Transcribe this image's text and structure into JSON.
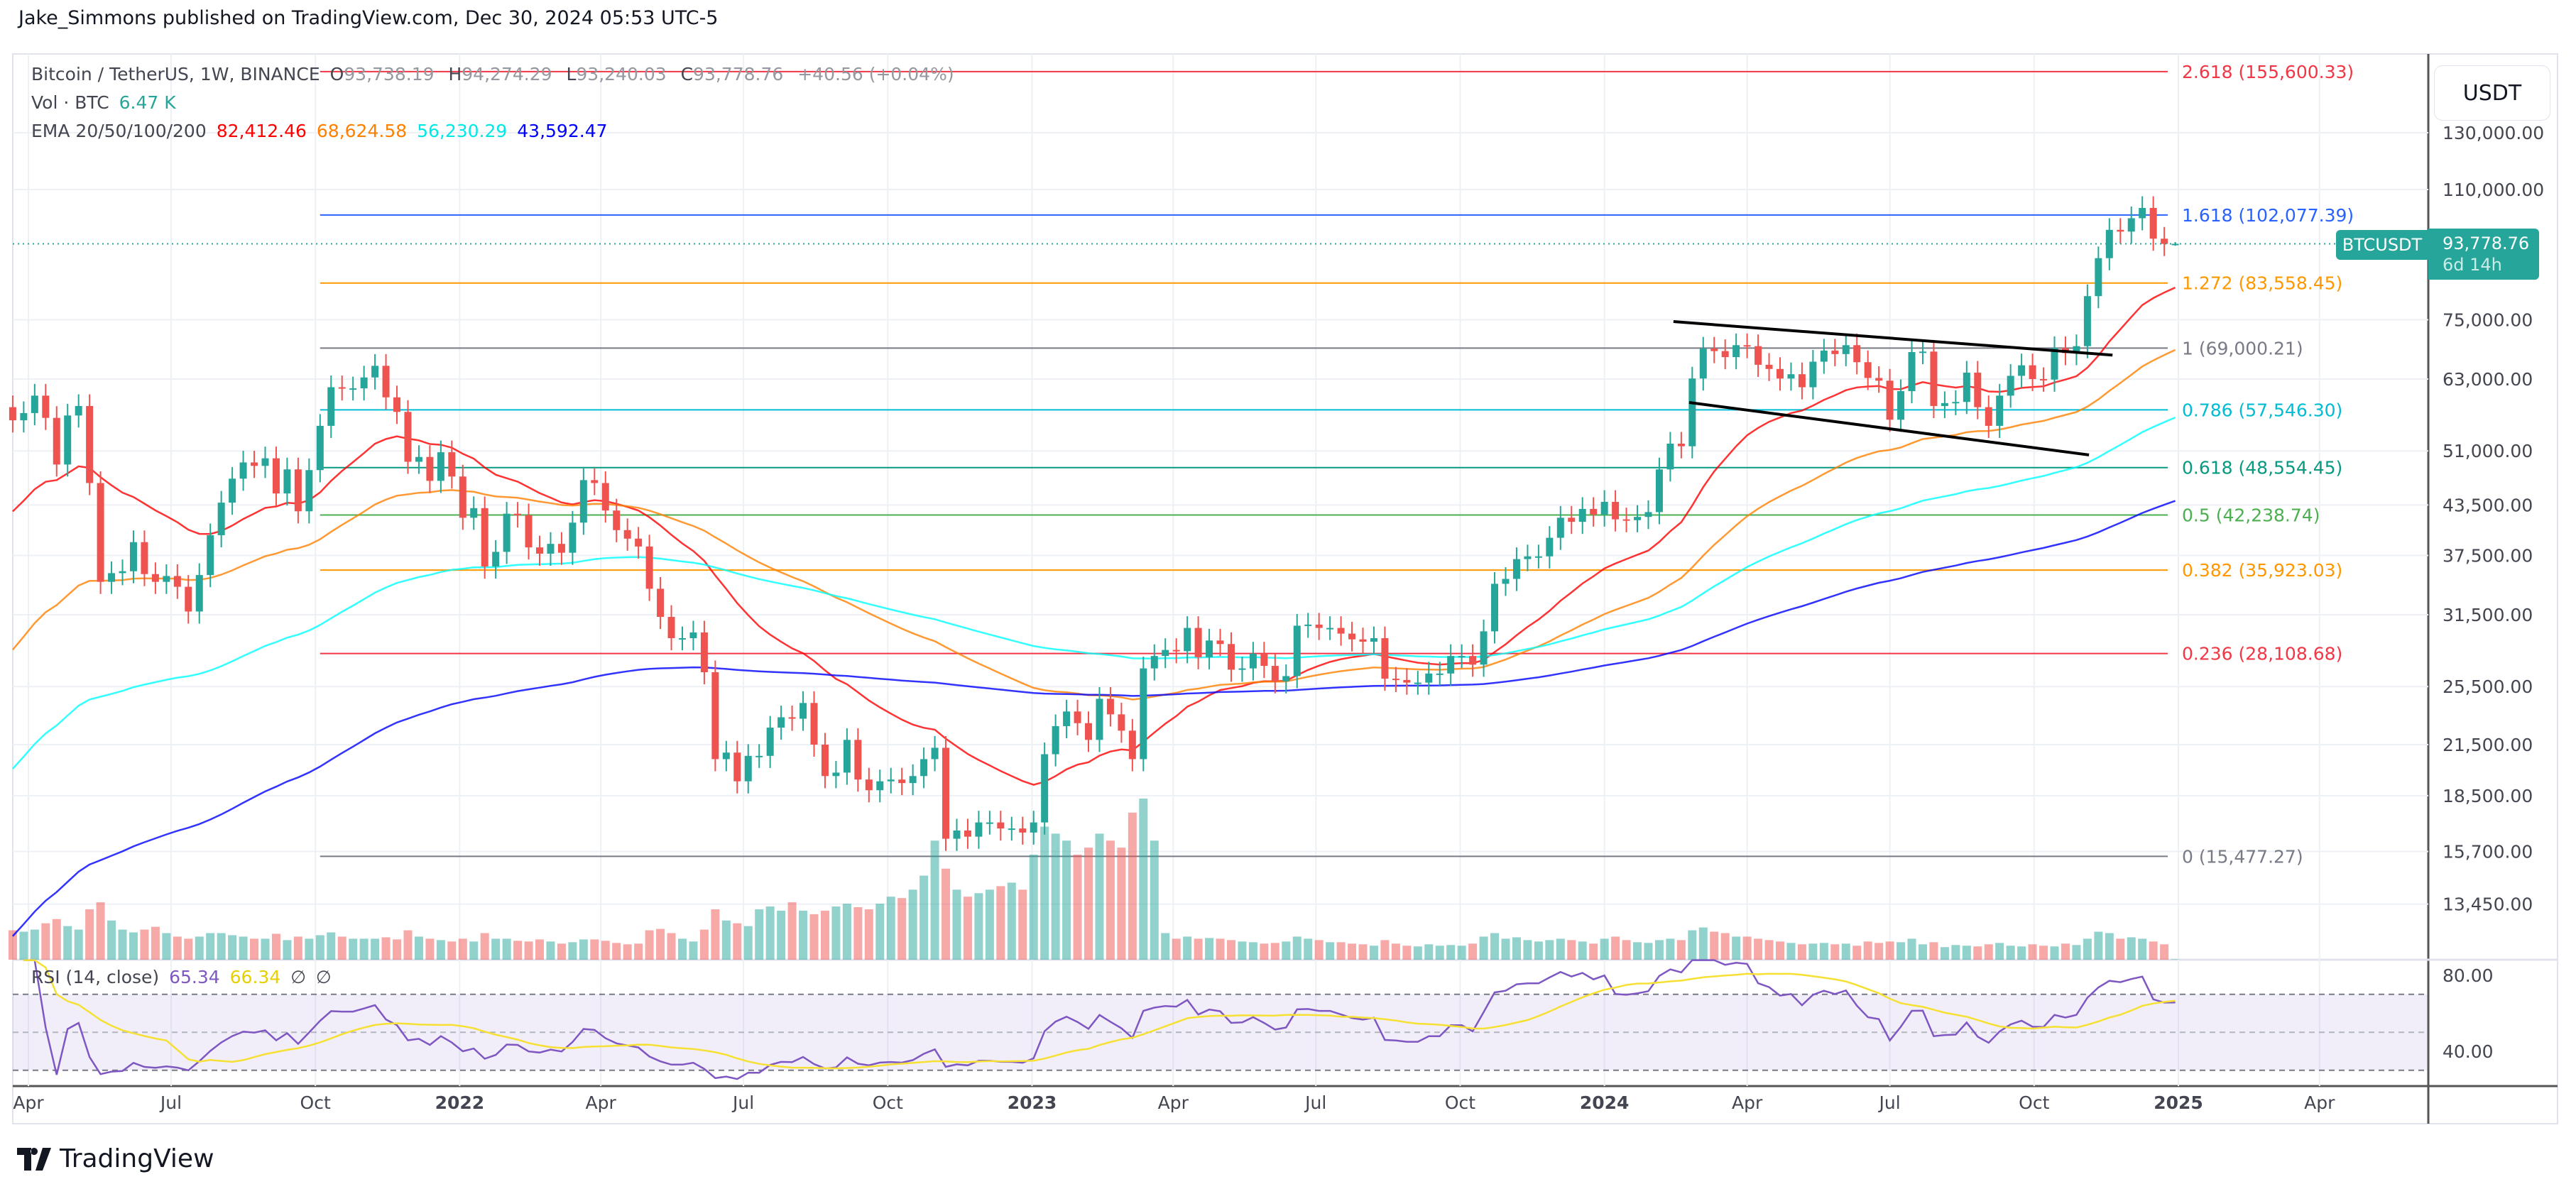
{
  "publisher": "Jake_Simmons published on TradingView.com, Dec 30, 2024 05:53 UTC-5",
  "legend": {
    "symbol": "Bitcoin / TetherUS, 1W, BINANCE",
    "o_label": "O",
    "o": "93,738.19",
    "h_label": "H",
    "h": "94,274.29",
    "l_label": "L",
    "l": "93,240.03",
    "c_label": "C",
    "c": "93,778.76",
    "change": "+40.56 (+0.04%)",
    "vol_label": "Vol · BTC",
    "vol": "6.47 K",
    "ema_label": "EMA 20/50/100/200",
    "ema_values": [
      "82,412.46",
      "68,624.58",
      "56,230.29",
      "43,592.47"
    ]
  },
  "axis": {
    "currency": "USDT",
    "symbol_tag": "BTCUSDT",
    "last_price": "93,778.76",
    "countdown": "6d 14h"
  },
  "rsi_legend": {
    "label": "RSI (14, close)",
    "rsi": "65.34",
    "ma": "66.34",
    "na1": "∅",
    "na2": "∅"
  },
  "brand": "TradingView",
  "colors": {
    "up": "#26a69a",
    "down": "#ef5350",
    "ema20": "#ff0000",
    "ema50": "#ff8000",
    "ema100": "#00ffff",
    "ema200": "#0000ff",
    "rsi": "#7e57c2",
    "rsi_ma": "#f5e033"
  },
  "chart_data": {
    "type": "candlestick",
    "scale": "log",
    "grid": true,
    "interval": "1W",
    "x_start": "2021-03-22",
    "close": [
      55800,
      57000,
      60000,
      56200,
      49000,
      56600,
      58200,
      46400,
      34700,
      35600,
      35800,
      39000,
      35500,
      34700,
      35300,
      34200,
      31800,
      35400,
      39800,
      43800,
      47000,
      49300,
      48800,
      49900,
      45000,
      48300,
      42700,
      48200,
      54900,
      61500,
      61300,
      61300,
      63300,
      65500,
      59700,
      57200,
      49400,
      50100,
      46700,
      50800,
      47300,
      41900,
      43100,
      36300,
      37900,
      42400,
      42200,
      38400,
      37700,
      38800,
      37800,
      41300,
      46800,
      46400,
      42800,
      40400,
      39400,
      38500,
      34000,
      31300,
      29400,
      29400,
      29900,
      26600,
      20600,
      21000,
      19300,
      20800,
      20800,
      22600,
      23300,
      23200,
      24300,
      21500,
      19600,
      19800,
      21800,
      19400,
      18800,
      19300,
      19400,
      19200,
      19600,
      20600,
      21300,
      16300,
      16700,
      16400,
      17100,
      17100,
      16800,
      16800,
      16600,
      17100,
      20900,
      22700,
      23700,
      22900,
      21800,
      24600,
      23500,
      22400,
      20600,
      26900,
      27900,
      28400,
      28300,
      30300,
      27800,
      29200,
      28900,
      26800,
      26900,
      28100,
      27100,
      25900,
      26300,
      30500,
      30600,
      30300,
      30300,
      29800,
      29300,
      29100,
      29400,
      26100,
      26000,
      25800,
      25800,
      26500,
      26500,
      27900,
      27900,
      27200,
      30000,
      34500,
      35000,
      37100,
      37400,
      37400,
      39500,
      41900,
      41400,
      43000,
      42300,
      43900,
      41700,
      41600,
      42000,
      42600,
      48300,
      52100,
      51700,
      63100,
      68900,
      68400,
      67200,
      69600,
      69400,
      65700,
      64900,
      63100,
      63900,
      61500,
      66300,
      68500,
      67800,
      69600,
      66200,
      63200,
      62700,
      55900,
      60800,
      68200,
      68300,
      58200,
      58700,
      58900,
      64200,
      58000,
      54900,
      60000,
      63600,
      65600,
      63000,
      62900,
      69000,
      68000,
      69400,
      80400,
      89900,
      97700,
      97200,
      101100,
      104200,
      95200,
      93738.19,
      93778.76
    ],
    "last_candle": {
      "open": 93738.19,
      "high": 94274.29,
      "low": 93240.03,
      "close": 93778.76
    },
    "volume_k": [
      420,
      400,
      430,
      520,
      580,
      480,
      430,
      720,
      820,
      560,
      430,
      390,
      430,
      470,
      380,
      330,
      300,
      330,
      380,
      380,
      350,
      330,
      300,
      300,
      370,
      280,
      330,
      300,
      350,
      390,
      330,
      300,
      300,
      300,
      320,
      290,
      420,
      330,
      300,
      280,
      260,
      300,
      260,
      380,
      300,
      300,
      270,
      260,
      290,
      260,
      230,
      250,
      290,
      290,
      270,
      240,
      220,
      230,
      420,
      440,
      380,
      300,
      260,
      430,
      720,
      560,
      520,
      480,
      720,
      760,
      700,
      820,
      700,
      650,
      700,
      760,
      800,
      750,
      720,
      800,
      900,
      880,
      1000,
      1200,
      1700,
      1300,
      1000,
      900,
      950,
      1000,
      1050,
      1100,
      1000,
      1500,
      1900,
      1800,
      1700,
      1500,
      1600,
      1800,
      1700,
      1600,
      2100,
      2300,
      1700,
      380,
      300,
      330,
      300,
      310,
      300,
      280,
      260,
      250,
      230,
      240,
      260,
      330,
      300,
      280,
      250,
      250,
      230,
      220,
      200,
      280,
      230,
      200,
      190,
      220,
      200,
      210,
      200,
      230,
      330,
      380,
      300,
      320,
      280,
      260,
      280,
      300,
      280,
      260,
      230,
      300,
      330,
      280,
      250,
      240,
      280,
      300,
      280,
      420,
      460,
      400,
      380,
      330,
      330,
      300,
      280,
      260,
      240,
      220,
      230,
      240,
      220,
      230,
      200,
      260,
      240,
      260,
      250,
      300,
      220,
      250,
      180,
      210,
      200,
      190,
      220,
      240,
      200,
      190,
      220,
      200,
      190,
      230,
      210,
      300,
      400,
      380,
      300,
      320,
      300,
      260,
      220,
      6.47
    ],
    "ema_initial": {
      "ema20": 41300,
      "ema50": 27300,
      "ema100": 19300,
      "ema200": 11800
    },
    "y_ticks": [
      "130,000.00",
      "110,000.00",
      "75,000.00",
      "63,000.00",
      "51,000.00",
      "43,500.00",
      "37,500.00",
      "31,500.00",
      "25,500.00",
      "21,500.00",
      "18,500.00",
      "15,700.00",
      "13,450.00"
    ],
    "y_tick_values": [
      130000,
      110000,
      75000,
      63000,
      51000,
      43500,
      37500,
      31500,
      25500,
      21500,
      18500,
      15700,
      13450
    ],
    "x_ticks": [
      {
        "label": "Apr",
        "date": "2021-04-01"
      },
      {
        "label": "Jul",
        "date": "2021-07-01"
      },
      {
        "label": "Oct",
        "date": "2021-10-01"
      },
      {
        "label": "2022",
        "date": "2022-01-01",
        "bold": true
      },
      {
        "label": "Apr",
        "date": "2022-04-01"
      },
      {
        "label": "Jul",
        "date": "2022-07-01"
      },
      {
        "label": "Oct",
        "date": "2022-10-01"
      },
      {
        "label": "2023",
        "date": "2023-01-01",
        "bold": true
      },
      {
        "label": "Apr",
        "date": "2023-04-01"
      },
      {
        "label": "Jul",
        "date": "2023-07-01"
      },
      {
        "label": "Oct",
        "date": "2023-10-01"
      },
      {
        "label": "2024",
        "date": "2024-01-01",
        "bold": true
      },
      {
        "label": "Apr",
        "date": "2024-04-01"
      },
      {
        "label": "Jul",
        "date": "2024-07-01"
      },
      {
        "label": "Oct",
        "date": "2024-10-01"
      },
      {
        "label": "2025",
        "date": "2025-01-01",
        "bold": true
      },
      {
        "label": "Apr",
        "date": "2025-04-01"
      }
    ],
    "fib_start": "2021-10-04",
    "fib_levels": [
      {
        "label": "2.618 (155,600.33)",
        "price": 155600.33,
        "color": "#f23645"
      },
      {
        "label": "1.618 (102,077.39)",
        "price": 102077.39,
        "color": "#2962ff"
      },
      {
        "label": "1.272 (83,558.45)",
        "price": 83558.45,
        "color": "#ff9800"
      },
      {
        "label": "1 (69,000.21)",
        "price": 69000.21,
        "color": "#787b86"
      },
      {
        "label": "0.786 (57,546.30)",
        "price": 57546.3,
        "color": "#00bcd4"
      },
      {
        "label": "0.618 (48,554.45)",
        "price": 48554.45,
        "color": "#089981"
      },
      {
        "label": "0.5 (42,238.74)",
        "price": 42238.74,
        "color": "#4caf50"
      },
      {
        "label": "0.382 (35,923.03)",
        "price": 35923.03,
        "color": "#ff9800"
      },
      {
        "label": "0.236 (28,108.68)",
        "price": 28108.68,
        "color": "#f23645"
      },
      {
        "label": "0 (15,477.27)",
        "price": 15477.27,
        "color": "#787b86"
      }
    ],
    "trend_lines": [
      {
        "from": {
          "date": "2024-02-14",
          "price": 74600
        },
        "to": {
          "date": "2024-11-20",
          "price": 67600
        }
      },
      {
        "from": {
          "date": "2024-02-24",
          "price": 58800
        },
        "to": {
          "date": "2024-11-05",
          "price": 50400
        }
      }
    ],
    "rsi": {
      "length": 14,
      "ma_length": 14,
      "levels": [
        70,
        50,
        30
      ],
      "y_ticks": [
        "80.00",
        "40.00"
      ],
      "y_tick_values": [
        80,
        40
      ]
    }
  }
}
